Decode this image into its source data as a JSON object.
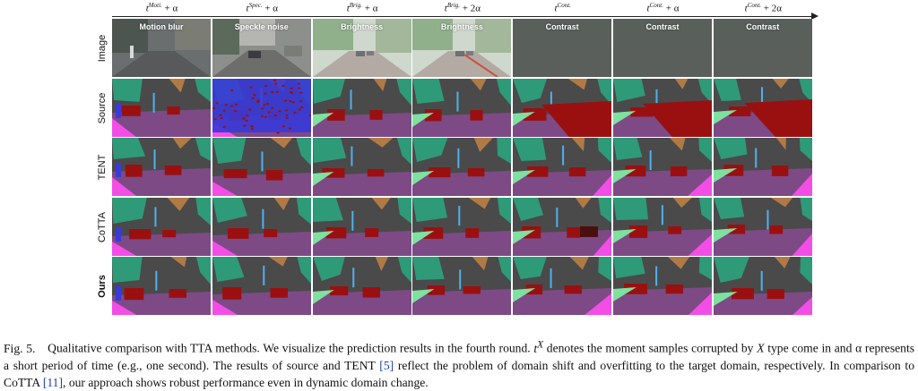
{
  "figure": {
    "columns": [
      {
        "base": "t",
        "sup": "Moti.",
        "suffix": "+ α",
        "overlay": "Motion blur"
      },
      {
        "base": "t",
        "sup": "Spec.",
        "suffix": "+ α",
        "overlay": "Speckle noise"
      },
      {
        "base": "t",
        "sup": "Brig.",
        "suffix": "+ α",
        "overlay": "Brightness"
      },
      {
        "base": "t",
        "sup": "Brig.",
        "suffix": "+ 2α",
        "overlay": "Brightness"
      },
      {
        "base": "t",
        "sup": "Cont.",
        "suffix": "",
        "overlay": "Contrast"
      },
      {
        "base": "t",
        "sup": "Cont.",
        "suffix": "+ α",
        "overlay": "Contrast"
      },
      {
        "base": "t",
        "sup": "Cont.",
        "suffix": "+ 2α",
        "overlay": "Contrast"
      }
    ],
    "rows": [
      {
        "label": "Image",
        "bold": false
      },
      {
        "label": "Source",
        "bold": false
      },
      {
        "label": "TENT",
        "bold": false
      },
      {
        "label": "CoTTA",
        "bold": false
      },
      {
        "label": "Ours",
        "bold": true
      }
    ],
    "colors": {
      "road": "#7d4a86",
      "sky": "#4a4a4a",
      "vegetation": "#2e9a78",
      "building": "#b07a46",
      "car": "#9a1010",
      "sidewalk": "#f24ee6",
      "terrain": "#7fe0a0",
      "person": "#3a3ad8",
      "pole": "#4fb0f0"
    }
  },
  "caption": {
    "label": "Fig. 5.",
    "text1": "Qualitative comparison with TTA methods. We visualize the prediction results in the fourth round.",
    "tx": "t",
    "txsup": "X",
    "text2": "denotes the moment samples corrupted by",
    "X": "X",
    "text3": "type come in and α represents a short period of time (e.g., one second). The results of source and TENT",
    "ref1": "[5]",
    "text4": "reflect the problem of domain shift and overfitting to the target domain, respectively. In comparison to CoTTA",
    "ref2": "[11]",
    "text5": ", our approach shows robust performance even in dynamic domain change."
  }
}
